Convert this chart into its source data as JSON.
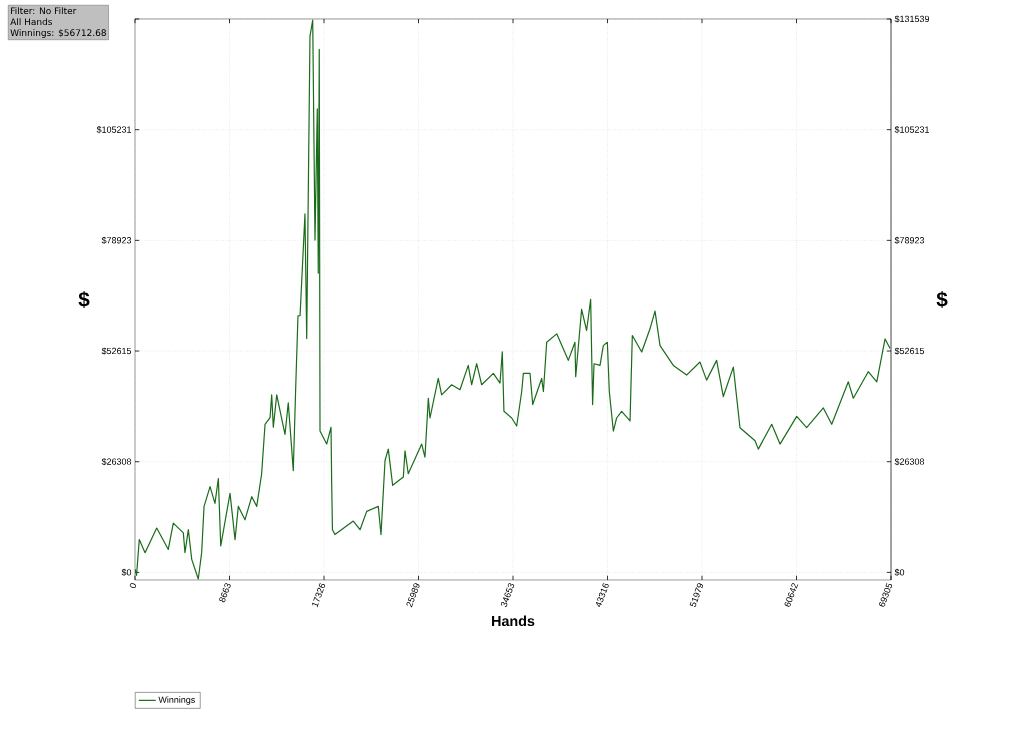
{
  "chart_data": {
    "type": "line",
    "xlabel": "Hands",
    "ylabel": "$",
    "y2label": "$",
    "annotations": [
      "Filter: No Filter",
      "All Hands",
      "Winnings: $56712.68"
    ],
    "xlim": [
      0,
      69305
    ],
    "xticks": [
      0,
      8663,
      17326,
      25989,
      34653,
      43316,
      51979,
      60642,
      69305
    ],
    "ylim": [
      -1800,
      131539
    ],
    "yticks": [
      {
        "value": 0,
        "label": "$0"
      },
      {
        "value": 26308,
        "label": "$26308"
      },
      {
        "value": 52615,
        "label": "$52615"
      },
      {
        "value": 78923,
        "label": "$78923"
      },
      {
        "value": 105231,
        "label": "$105231"
      },
      {
        "value": 131539,
        "label": null
      }
    ],
    "y2lim": [
      -1800,
      131539
    ],
    "y2ticks": [
      {
        "value": 0,
        "label": "$0"
      },
      {
        "value": 26308,
        "label": "$26308"
      },
      {
        "value": 52615,
        "label": "$52615"
      },
      {
        "value": 78923,
        "label": "$78923"
      },
      {
        "value": 105231,
        "label": "$105231"
      },
      {
        "value": 131539,
        "label": "$131539"
      }
    ],
    "grid": true,
    "legend": "bottom left",
    "marker": "none",
    "line_style": "solid",
    "series": [
      {
        "name": "Winnings",
        "color": "#1a6b1a",
        "x": [
          0,
          140,
          390,
          920,
          1990,
          3050,
          3510,
          4430,
          4580,
          4890,
          5200,
          5800,
          6110,
          6330,
          6880,
          7330,
          7640,
          7860,
          8710,
          9170,
          9470,
          10080,
          10700,
          11160,
          11610,
          11920,
          12380,
          12530,
          12680,
          12990,
          13750,
          14050,
          14510,
          14730,
          14940,
          15130,
          15580,
          15740,
          16040,
          16290,
          16500,
          16710,
          16800,
          16890,
          16960,
          17570,
          17970,
          18030,
          18100,
          18330,
          20010,
          20630,
          21240,
          22300,
          22550,
          22920,
          23220,
          23620,
          24600,
          24750,
          25050,
          26280,
          26580,
          26890,
          27040,
          27800,
          28110,
          29030,
          29790,
          30550,
          30860,
          31320,
          31780,
          32850,
          33460,
          33670,
          33820,
          34530,
          34990,
          35450,
          35600,
          36210,
          36460,
          37280,
          37440,
          37740,
          38660,
          39720,
          40330,
          40400,
          40940,
          41400,
          41770,
          41950,
          42080,
          42630,
          42930,
          43300,
          43480,
          43850,
          44150,
          44610,
          45380,
          45590,
          46450,
          47210,
          47670,
          48130,
          49350,
          50570,
          51790,
          52400,
          53320,
          53930,
          54850,
          55460,
          56840,
          57140,
          58370,
          59130,
          60660,
          61570,
          63100,
          63870,
          65390,
          65850,
          67220,
          68000,
          68760,
          69220
        ],
        "values": [
          800,
          -700,
          7800,
          4700,
          10550,
          5460,
          11700,
          9400,
          4700,
          10150,
          3100,
          -1560,
          4700,
          15700,
          20400,
          16400,
          22300,
          6300,
          18800,
          7800,
          15700,
          12500,
          18000,
          15700,
          23450,
          35200,
          36800,
          42200,
          34500,
          42200,
          32800,
          40300,
          24200,
          43800,
          61000,
          61000,
          85200,
          55600,
          127400,
          131300,
          79000,
          110200,
          71100,
          124300,
          33600,
          30500,
          34500,
          21100,
          10150,
          9000,
          12200,
          10150,
          14500,
          15700,
          9000,
          26600,
          29300,
          20700,
          22700,
          28900,
          23450,
          30500,
          27400,
          41400,
          36700,
          46100,
          42200,
          44600,
          43400,
          49200,
          44600,
          49600,
          44600,
          47300,
          45000,
          52400,
          38300,
          36700,
          34800,
          43000,
          47300,
          47300,
          39900,
          46100,
          43000,
          54700,
          56700,
          50400,
          54700,
          46500,
          62500,
          57500,
          64900,
          39900,
          49600,
          49200,
          53900,
          54700,
          43000,
          33600,
          36700,
          38300,
          36000,
          56300,
          52400,
          57900,
          62100,
          53900,
          49200,
          46900,
          50000,
          45700,
          50400,
          41800,
          48800,
          34400,
          31300,
          29300,
          35200,
          30500,
          37100,
          34400,
          39100,
          35200,
          45300,
          41400,
          47700,
          45300,
          55500,
          53200
        ]
      }
    ]
  }
}
